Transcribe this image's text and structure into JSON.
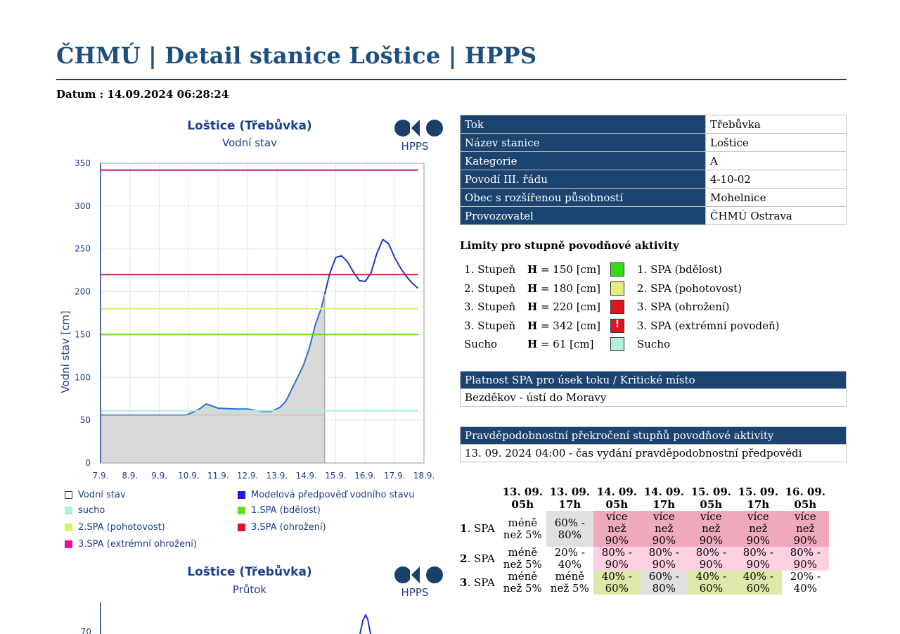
{
  "page": {
    "title": "ČHMÚ | Detail stanice Loštice | HPPS",
    "datum": "Datum : 14.09.2024 06:28:24"
  },
  "chart1": {
    "title": "Loštice (Třebůvka)",
    "subtitle": "Vodní stav",
    "logo_text": "HPPS",
    "ylabel": "Vodní stav [cm]",
    "y_ticks": [
      "0",
      "50",
      "100",
      "150",
      "200",
      "250",
      "300",
      "350"
    ],
    "x_ticks": [
      "7.9.",
      "8.9.",
      "9.9.",
      "10.9.",
      "11.9.",
      "12.9.",
      "13.9.",
      "14.9.",
      "15.9.",
      "16.9.",
      "17.9.",
      "18.9."
    ]
  },
  "chart_data": [
    {
      "type": "line",
      "title": "Loštice (Třebůvka)",
      "subtitle": "Vodní stav",
      "xlabel": "",
      "ylabel": "Vodní stav [cm]",
      "ylim": [
        0,
        350
      ],
      "x_categories": [
        "7.9.",
        "8.9.",
        "9.9.",
        "10.9.",
        "11.9.",
        "12.9.",
        "13.9.",
        "14.9.",
        "15.9.",
        "16.9.",
        "17.9.",
        "18.9."
      ],
      "series": [
        {
          "name": "Vodní stav",
          "kind": "area",
          "color": "#d9d9d9",
          "x": [
            7.0,
            8.0,
            9.0,
            9.9,
            10.2,
            10.4,
            10.6,
            11.0,
            11.6,
            12.0,
            12.5,
            12.8,
            13.1,
            13.3,
            13.5,
            13.7,
            13.9,
            14.1,
            14.3,
            14.5,
            14.62
          ],
          "y": [
            56,
            56,
            56,
            56,
            60,
            64,
            69,
            64,
            63,
            63,
            60,
            60,
            65,
            72,
            86,
            100,
            114,
            134,
            161,
            180,
            197
          ]
        },
        {
          "name": "Modelová předpověď vodního stavu",
          "kind": "line",
          "color": "#2233cc",
          "x": [
            14.62,
            14.8,
            15.0,
            15.2,
            15.4,
            15.6,
            15.8,
            16.0,
            16.2,
            16.4,
            16.6,
            16.8,
            17.0,
            17.2,
            17.4,
            17.6,
            17.8
          ],
          "y": [
            197,
            222,
            240,
            242,
            235,
            223,
            213,
            212,
            222,
            245,
            261,
            256,
            240,
            228,
            218,
            210,
            204
          ]
        },
        {
          "name": "sucho",
          "kind": "hline",
          "color": "#aef0d8",
          "x": [
            7.0,
            17.8
          ],
          "y": [
            61,
            61
          ]
        },
        {
          "name": "1.SPA (bdělost)",
          "kind": "hline",
          "color": "#66dd22",
          "x": [
            7.0,
            17.8
          ],
          "y": [
            150,
            150
          ]
        },
        {
          "name": "2.SPA (pohotovost)",
          "kind": "hline",
          "color": "#dfef66",
          "x": [
            7.0,
            17.8
          ],
          "y": [
            180,
            180
          ]
        },
        {
          "name": "3.SPA (ohrožení)",
          "kind": "hline",
          "color": "#cc2244",
          "x": [
            7.0,
            17.8
          ],
          "y": [
            220,
            220
          ]
        },
        {
          "name": "3.SPA (extrémní ohrožení)",
          "kind": "hline",
          "color": "#dd1188",
          "x": [
            7.0,
            17.8
          ],
          "y": [
            342,
            342
          ]
        }
      ],
      "legend_placement": "bottom",
      "grid": true
    },
    {
      "type": "line",
      "title": "Loštice (Třebůvka)",
      "subtitle": "Průtok",
      "xlabel": "",
      "ylabel": "",
      "y_ticks": [
        "70"
      ],
      "series": []
    }
  ],
  "legend": {
    "items": [
      {
        "label": "Vodní stav",
        "color": "#ffffff"
      },
      {
        "label": "Modelová předpověď vodního stavu",
        "color": "#1a1aee"
      },
      {
        "label": "sucho",
        "color": "#aef0d8"
      },
      {
        "label": "1.SPA (bdělost)",
        "color": "#66dd22"
      },
      {
        "label": "2.SPA (pohotovost)",
        "color": "#dfef66"
      },
      {
        "label": "3.SPA (ohrožení)",
        "color": "#dd1133"
      },
      {
        "label": "3.SPA (extrémní ohrožení)",
        "color": "#ee1199"
      }
    ]
  },
  "chart2": {
    "title": "Loštice (Třebůvka)",
    "subtitle": "Průtok",
    "logo_text": "HPPS",
    "y_tick": "70"
  },
  "station_info": [
    {
      "key": "Tok",
      "value": "Třebůvka"
    },
    {
      "key": "Název stanice",
      "value": "Loštice"
    },
    {
      "key": "Kategorie",
      "value": "A"
    },
    {
      "key": "Povodí III. řádu",
      "value": "4-10-02"
    },
    {
      "key": "Obec s rozšířenou působností",
      "value": "Mohelnice"
    },
    {
      "key": "Provozovatel",
      "value": "ČHMÚ Ostrava"
    }
  ],
  "limits": {
    "title": "Limity pro stupně povodňové aktivity",
    "h_label": "H",
    "rows": [
      {
        "stage": "1. Stupeň",
        "value": "= 150 [cm]",
        "color": "#33dd11",
        "label": "1. SPA (bdělost)",
        "excl": ""
      },
      {
        "stage": "2. Stupeň",
        "value": "= 180 [cm]",
        "color": "#e2f07a",
        "label": "2. SPA (pohotovost)",
        "excl": ""
      },
      {
        "stage": "3. Stupeň",
        "value": "= 220 [cm]",
        "color": "#e0141e",
        "label": "3. SPA (ohrožení)",
        "excl": ""
      },
      {
        "stage": "3. Stupeň",
        "value": "= 342 [cm]",
        "color": "#e0141e",
        "label": "3. SPA (extrémní povodeň)",
        "excl": "!"
      },
      {
        "stage": "Sucho",
        "value": "= 61 [cm]",
        "color": "#b4f0da",
        "label": "Sucho",
        "excl": ""
      }
    ]
  },
  "spa_section": {
    "header": "Platnost SPA pro úsek toku / Kritické místo",
    "value": "Bezděkov - ústí do Moravy"
  },
  "probability": {
    "header": "Pravděpodobnostní překročení stupňů povodňové aktivity",
    "issued": "13. 09. 2024 04:00 - čas vydání pravděpodobnostní předpovědi",
    "columns": [
      [
        "13. 09.",
        "05h"
      ],
      [
        "13. 09.",
        "17h"
      ],
      [
        "14. 09.",
        "05h"
      ],
      [
        "14. 09.",
        "17h"
      ],
      [
        "15. 09.",
        "05h"
      ],
      [
        "15. 09.",
        "17h"
      ],
      [
        "16. 09.",
        "05h"
      ]
    ],
    "rows": [
      {
        "num": "1",
        "suffix": ". SPA",
        "cells": [
          {
            "lines": [
              "méně",
              "než 5%"
            ],
            "bg": "#ffffff"
          },
          {
            "lines": [
              "60% -",
              "80%"
            ],
            "bg": "#e0e0e0"
          },
          {
            "lines": [
              "více",
              "než",
              "90%"
            ],
            "bg": "#eeaabb"
          },
          {
            "lines": [
              "více",
              "než",
              "90%"
            ],
            "bg": "#eeaabb"
          },
          {
            "lines": [
              "více",
              "než",
              "90%"
            ],
            "bg": "#eeaabb"
          },
          {
            "lines": [
              "více",
              "než",
              "90%"
            ],
            "bg": "#eeaabb"
          },
          {
            "lines": [
              "více",
              "než",
              "90%"
            ],
            "bg": "#eeaabb"
          }
        ]
      },
      {
        "num": "2",
        "suffix": ". SPA",
        "cells": [
          {
            "lines": [
              "méně",
              "než 5%"
            ],
            "bg": "#ffffff"
          },
          {
            "lines": [
              "20% -",
              "40%"
            ],
            "bg": "#ffffff"
          },
          {
            "lines": [
              "80% -",
              "90%"
            ],
            "bg": "#ffd0e0"
          },
          {
            "lines": [
              "80% -",
              "90%"
            ],
            "bg": "#ffd0e0"
          },
          {
            "lines": [
              "80% -",
              "90%"
            ],
            "bg": "#ffd0e0"
          },
          {
            "lines": [
              "80% -",
              "90%"
            ],
            "bg": "#ffd0e0"
          },
          {
            "lines": [
              "80% -",
              "90%"
            ],
            "bg": "#ffd0e0"
          }
        ]
      },
      {
        "num": "3",
        "suffix": ". SPA",
        "cells": [
          {
            "lines": [
              "méně",
              "než 5%"
            ],
            "bg": "#ffffff"
          },
          {
            "lines": [
              "méně",
              "než 5%"
            ],
            "bg": "#ffffff"
          },
          {
            "lines": [
              "40% -",
              "60%"
            ],
            "bg": "#dde9a8"
          },
          {
            "lines": [
              "60% -",
              "80%"
            ],
            "bg": "#e0e0e0"
          },
          {
            "lines": [
              "40% -",
              "60%"
            ],
            "bg": "#dde9a8"
          },
          {
            "lines": [
              "40% -",
              "60%"
            ],
            "bg": "#dde9a8"
          },
          {
            "lines": [
              "20% -",
              "40%"
            ],
            "bg": "#ffffff"
          }
        ]
      }
    ]
  }
}
